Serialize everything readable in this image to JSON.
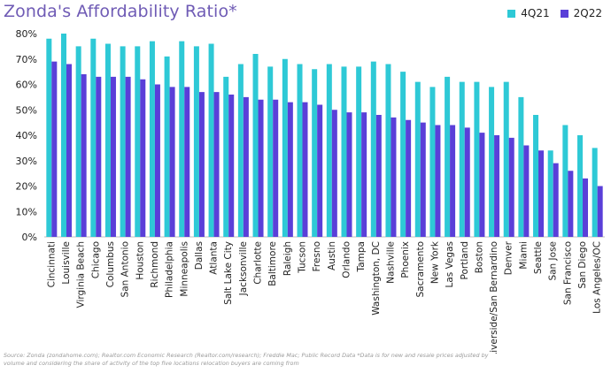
{
  "chart_data": {
    "type": "bar",
    "title": "Zonda's Affordability Ratio*",
    "xlabel": "",
    "ylabel": "",
    "ylim": [
      0,
      80
    ],
    "yticks": [
      0,
      10,
      20,
      30,
      40,
      50,
      60,
      70,
      80
    ],
    "ytick_labels": [
      "0%",
      "10%",
      "20%",
      "30%",
      "40%",
      "50%",
      "60%",
      "70%",
      "80%"
    ],
    "legend_position": "top-right",
    "grid": false,
    "categories": [
      "Cincinnati",
      "Louisville",
      "Virginia Beach",
      "Chicago",
      "Columbus",
      "San Antonio",
      "Houston",
      "Richmond",
      "Philadelphia",
      "Minneapolis",
      "Dallas",
      "Atlanta",
      "Salt Lake City",
      "Jacksonville",
      "Charlotte",
      "Baltimore",
      "Raleigh",
      "Tucson",
      "Fresno",
      "Austin",
      "Orlando",
      "Tampa",
      "Washington, DC",
      "Nashville",
      "Phoenix",
      "Sacramento",
      "New York",
      "Las Vegas",
      "Portland",
      "Boston",
      "Riverside/San Bernardino",
      "Denver",
      "Miami",
      "Seattle",
      "San Jose",
      "San Francisco",
      "San Diego",
      "Los Angeles/OC"
    ],
    "series": [
      {
        "name": "4Q21",
        "color": "#2ec9d6",
        "values": [
          78,
          80,
          75,
          78,
          76,
          75,
          75,
          77,
          71,
          77,
          75,
          76,
          63,
          68,
          72,
          67,
          70,
          68,
          66,
          68,
          67,
          67,
          69,
          68,
          65,
          61,
          59,
          63,
          61,
          61,
          59,
          61,
          55,
          48,
          34,
          44,
          40,
          35
        ]
      },
      {
        "name": "2Q22",
        "color": "#5a3fd8",
        "values": [
          69,
          68,
          64,
          63,
          63,
          63,
          62,
          60,
          59,
          59,
          57,
          57,
          56,
          55,
          54,
          54,
          53,
          53,
          52,
          50,
          49,
          49,
          48,
          47,
          46,
          45,
          44,
          44,
          43,
          41,
          40,
          39,
          36,
          34,
          29,
          26,
          23,
          20
        ]
      }
    ]
  },
  "source_note": "Source: Zonda (zondahome.com); Realtor.com Economic Research (Realtor.com/research); Freddie Mac; Public Record Data *Data is for new and resale prices adjusted by volume and considering the share of activity of the top five locations relocation buyers are coming from"
}
